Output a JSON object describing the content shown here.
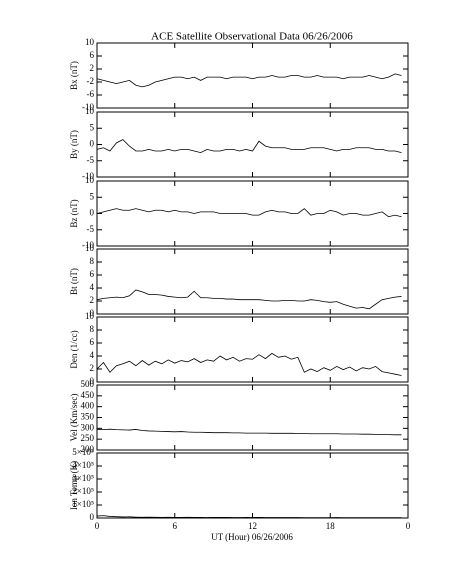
{
  "chart_data": [
    {
      "type": "line",
      "title": "ACE Satellite Observational Data   06/26/2006",
      "ylabel": "Bx (nT)",
      "color": "#000000",
      "ylim": [
        -10,
        10
      ],
      "yticks": [
        -10,
        -6,
        -2,
        2,
        6,
        10
      ],
      "x": [
        0,
        0.5,
        1,
        1.5,
        2,
        2.5,
        3,
        3.5,
        4,
        4.5,
        5,
        5.5,
        6,
        6.5,
        7,
        7.5,
        8,
        8.5,
        9,
        9.5,
        10,
        10.5,
        11,
        11.5,
        12,
        12.5,
        13,
        13.5,
        14,
        14.5,
        15,
        15.5,
        16,
        16.5,
        17,
        17.5,
        18,
        18.5,
        19,
        19.5,
        20,
        20.5,
        21,
        21.5,
        22,
        22.5,
        23,
        23.5
      ],
      "values": [
        -1,
        -1.5,
        -2,
        -2.5,
        -2,
        -1.5,
        -3,
        -3.5,
        -3,
        -2,
        -1.5,
        -1,
        -0.5,
        -0.5,
        -1,
        -0.5,
        -1.5,
        -0.5,
        -0.5,
        -0.5,
        -1,
        -0.5,
        -0.5,
        -0.5,
        -1,
        -0.5,
        -0.5,
        0,
        -0.5,
        -0.5,
        0,
        0,
        -0.5,
        -0.5,
        0,
        -0.5,
        -0.5,
        -0.5,
        -1,
        -0.5,
        -0.5,
        -0.5,
        0,
        -0.5,
        -1,
        -0.5,
        0.5,
        0
      ]
    },
    {
      "type": "line",
      "ylabel": "By (nT)",
      "color": "#000000",
      "ylim": [
        -10,
        10
      ],
      "yticks": [
        -10,
        -5,
        0,
        5,
        10
      ],
      "x": [
        0,
        0.5,
        1,
        1.5,
        2,
        2.5,
        3,
        3.5,
        4,
        4.5,
        5,
        5.5,
        6,
        6.5,
        7,
        7.5,
        8,
        8.5,
        9,
        9.5,
        10,
        10.5,
        11,
        11.5,
        12,
        12.5,
        13,
        13.5,
        14,
        14.5,
        15,
        15.5,
        16,
        16.5,
        17,
        17.5,
        18,
        18.5,
        19,
        19.5,
        20,
        20.5,
        21,
        21.5,
        22,
        22.5,
        23,
        23.5
      ],
      "values": [
        -1.5,
        -1,
        -2,
        0.5,
        1.5,
        -0.5,
        -2,
        -2,
        -1.5,
        -2,
        -2,
        -1.5,
        -2,
        -1.5,
        -1.5,
        -2,
        -2.5,
        -1.5,
        -2,
        -2,
        -1.5,
        -1.5,
        -2,
        -1.5,
        -2,
        1,
        -0.5,
        -1,
        -1,
        -1,
        -1.5,
        -1.5,
        -1.5,
        -1,
        -1,
        -1,
        -1.5,
        -2,
        -1.5,
        -1.5,
        -1,
        -1,
        -1,
        -1.5,
        -1.5,
        -2,
        -2,
        -2.5
      ]
    },
    {
      "type": "line",
      "ylabel": "Bz (nT)",
      "color": "#000000",
      "ylim": [
        -10,
        10
      ],
      "yticks": [
        -10,
        -5,
        0,
        5,
        10
      ],
      "x": [
        0,
        0.5,
        1,
        1.5,
        2,
        2.5,
        3,
        3.5,
        4,
        4.5,
        5,
        5.5,
        6,
        6.5,
        7,
        7.5,
        8,
        8.5,
        9,
        9.5,
        10,
        10.5,
        11,
        11.5,
        12,
        12.5,
        13,
        13.5,
        14,
        14.5,
        15,
        15.5,
        16,
        16.5,
        17,
        17.5,
        18,
        18.5,
        19,
        19.5,
        20,
        20.5,
        21,
        21.5,
        22,
        22.5,
        23,
        23.5
      ],
      "values": [
        0,
        0.5,
        1,
        1.5,
        1,
        1,
        1.5,
        1,
        0.5,
        1,
        1,
        0.5,
        1,
        0.5,
        0.5,
        0,
        0.5,
        0.5,
        0.5,
        0,
        0,
        0,
        0,
        0,
        -0.5,
        -0.5,
        0.5,
        1,
        0.5,
        0.5,
        0,
        0,
        1.5,
        -0.5,
        0,
        0,
        1,
        0.5,
        -0.5,
        0,
        0,
        -0.5,
        -0.5,
        0,
        0.5,
        -1,
        -0.5,
        -1
      ]
    },
    {
      "type": "line",
      "ylabel": "Bt (nT)",
      "color": "#000000",
      "ylim": [
        0,
        10
      ],
      "yticks": [
        0,
        2,
        4,
        6,
        8,
        10
      ],
      "x": [
        0,
        0.5,
        1,
        1.5,
        2,
        2.5,
        3,
        3.5,
        4,
        4.5,
        5,
        5.5,
        6,
        6.5,
        7,
        7.5,
        8,
        8.5,
        9,
        9.5,
        10,
        10.5,
        11,
        11.5,
        12,
        12.5,
        13,
        13.5,
        14,
        14.5,
        15,
        15.5,
        16,
        16.5,
        17,
        17.5,
        18,
        18.5,
        19,
        19.5,
        20,
        20.5,
        21,
        21.5,
        22,
        22.5,
        23,
        23.5
      ],
      "values": [
        2.2,
        2.4,
        2.5,
        2.6,
        2.5,
        2.8,
        3.7,
        3.4,
        3,
        3,
        2.9,
        2.7,
        2.6,
        2.5,
        2.6,
        3.5,
        2.5,
        2.5,
        2.4,
        2.4,
        2.3,
        2.3,
        2.2,
        2.2,
        2.2,
        2.2,
        2.1,
        2,
        2,
        2.1,
        2.1,
        2,
        2,
        2.2,
        2.1,
        1.9,
        1.8,
        1.9,
        1.5,
        1.2,
        0.9,
        1,
        0.8,
        1.5,
        2.2,
        2.4,
        2.6,
        2.7
      ]
    },
    {
      "type": "line",
      "ylabel": "Den (1/cc)",
      "color": "#000000",
      "ylim": [
        0,
        10
      ],
      "yticks": [
        0,
        2,
        4,
        6,
        8,
        10
      ],
      "x": [
        0,
        0.5,
        1,
        1.5,
        2,
        2.5,
        3,
        3.5,
        4,
        4.5,
        5,
        5.5,
        6,
        6.5,
        7,
        7.5,
        8,
        8.5,
        9,
        9.5,
        10,
        10.5,
        11,
        11.5,
        12,
        12.5,
        13,
        13.5,
        14,
        14.5,
        15,
        15.5,
        16,
        16.5,
        17,
        17.5,
        18,
        18.5,
        19,
        19.5,
        20,
        20.5,
        21,
        21.5,
        22,
        22.5,
        23,
        23.5
      ],
      "values": [
        2,
        3,
        1.5,
        2.5,
        2.8,
        3.2,
        2.5,
        3.3,
        2.6,
        3.2,
        2.8,
        3.4,
        2.9,
        3.3,
        3.1,
        3.6,
        3,
        3.4,
        3.2,
        4,
        3.4,
        3.8,
        3.2,
        3.6,
        3.5,
        4.2,
        3.6,
        4.4,
        3.8,
        4,
        3.5,
        3.8,
        1.5,
        2,
        1.6,
        2.2,
        1.8,
        2.4,
        1.9,
        2.3,
        1.7,
        2.2,
        2,
        2.4,
        1.6,
        1.4,
        1.2,
        1
      ]
    },
    {
      "type": "line",
      "ylabel": "Vel (Km/sec)",
      "color": "#000000",
      "ylim": [
        200,
        500
      ],
      "yticks": [
        200,
        250,
        300,
        350,
        400,
        450,
        500
      ],
      "x": [
        0,
        0.5,
        1,
        1.5,
        2,
        2.5,
        3,
        3.5,
        4,
        4.5,
        5,
        5.5,
        6,
        6.5,
        7,
        7.5,
        8,
        8.5,
        9,
        9.5,
        10,
        10.5,
        11,
        11.5,
        12,
        12.5,
        13,
        13.5,
        14,
        14.5,
        15,
        15.5,
        16,
        16.5,
        17,
        17.5,
        18,
        18.5,
        19,
        19.5,
        20,
        20.5,
        21,
        21.5,
        22,
        22.5,
        23,
        23.5
      ],
      "values": [
        295,
        294,
        296,
        294,
        293,
        292,
        295,
        290,
        288,
        287,
        286,
        285,
        284,
        285,
        283,
        282,
        282,
        281,
        280,
        280,
        280,
        279,
        279,
        278,
        278,
        278,
        278,
        277,
        277,
        277,
        277,
        276,
        276,
        275,
        275,
        275,
        275,
        275,
        274,
        274,
        274,
        273,
        273,
        272,
        272,
        271,
        270,
        270
      ]
    },
    {
      "type": "line",
      "ylabel": "Ion Temp (K)",
      "xlabel": "UT (Hour)  06/26/2006",
      "color": "#000000",
      "ylim": [
        0,
        500000
      ],
      "yticks": [
        0,
        {
          "value": 100000,
          "label": "1×10⁵"
        },
        {
          "value": 200000,
          "label": "2×10⁵"
        },
        {
          "value": 300000,
          "label": "3×10⁵"
        },
        {
          "value": 400000,
          "label": "4×10⁵"
        },
        {
          "value": 500000,
          "label": "5×10⁵"
        }
      ],
      "xlim": [
        0,
        24
      ],
      "xticks": [
        0,
        6,
        12,
        18,
        {
          "value": 24,
          "label": "0"
        }
      ],
      "x": [
        0,
        0.5,
        1,
        1.5,
        2,
        2.5,
        3,
        3.5,
        4,
        4.5,
        5,
        5.5,
        6,
        6.5,
        7,
        7.5,
        8,
        8.5,
        9,
        9.5,
        10,
        10.5,
        11,
        11.5,
        12,
        12.5,
        13,
        13.5,
        14,
        14.5,
        15,
        15.5,
        16,
        16.5,
        17,
        17.5,
        18,
        18.5,
        19,
        19.5,
        20,
        20.5,
        21,
        21.5,
        22,
        22.5,
        23,
        23.5
      ],
      "values": [
        15000,
        18000,
        12000,
        10000,
        8000,
        9000,
        7000,
        6000,
        7000,
        6000,
        5000,
        6000,
        5000,
        5000,
        6000,
        5000,
        5000,
        4000,
        5000,
        5000,
        5000,
        4000,
        4000,
        5000,
        4000,
        5000,
        4000,
        4000,
        4000,
        4000,
        4000,
        4000,
        3000,
        3000,
        3000,
        3000,
        3000,
        4000,
        3000,
        3000,
        3000,
        3000,
        3000,
        3000,
        3000,
        3000,
        3000,
        3000
      ]
    }
  ]
}
